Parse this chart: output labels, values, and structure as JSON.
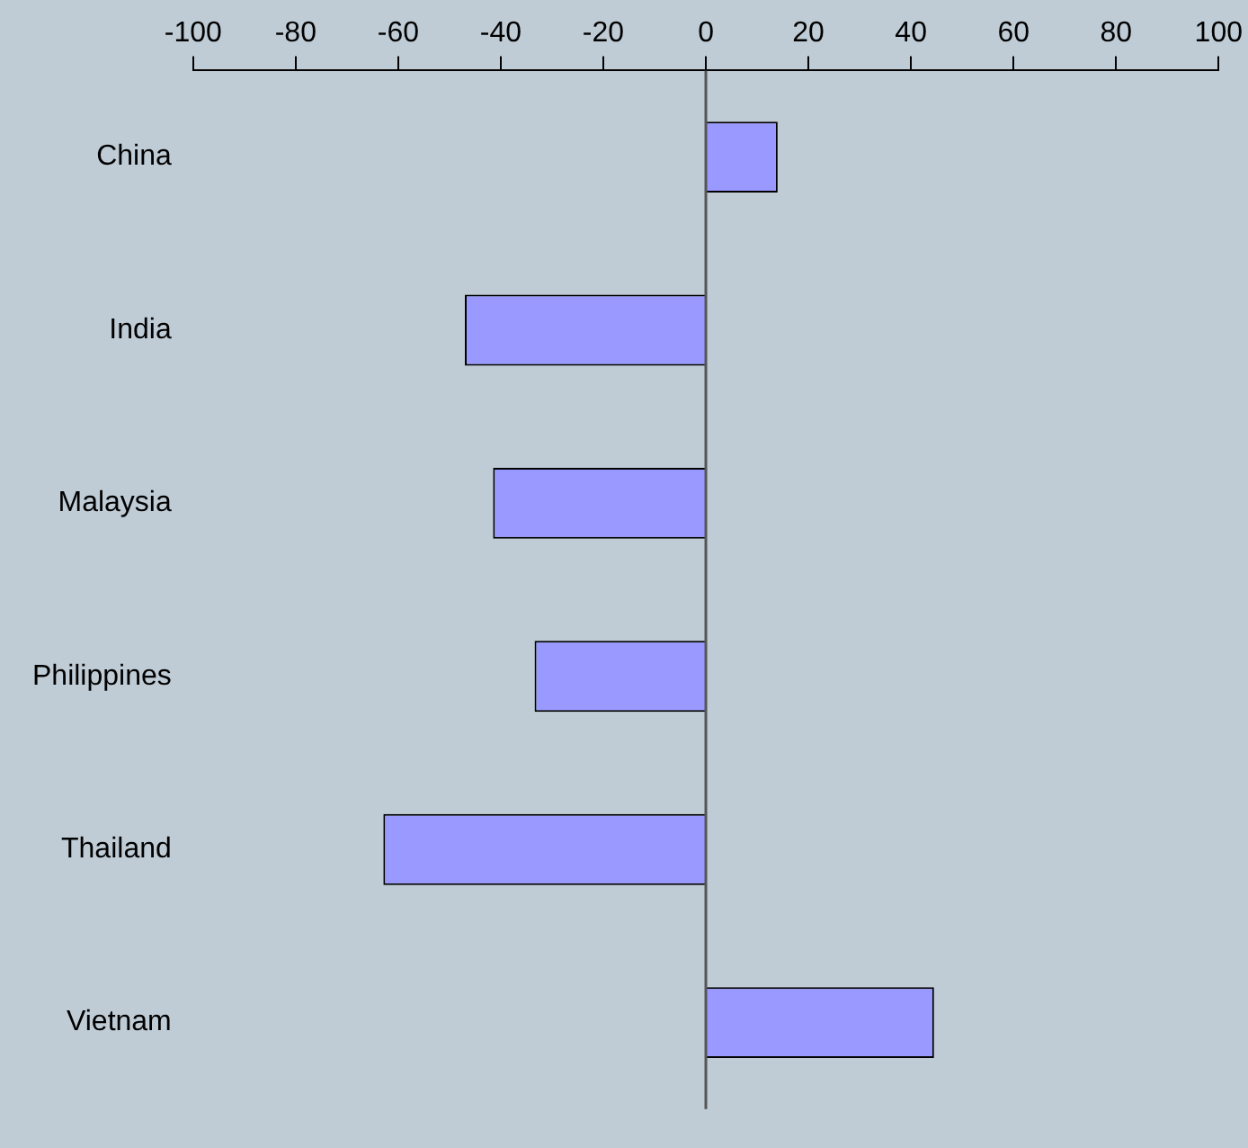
{
  "chart_data": {
    "type": "bar",
    "orientation": "horizontal",
    "categories": [
      "China",
      "India",
      "Malaysia",
      "Philippines",
      "Thailand",
      "Vietnam"
    ],
    "values": [
      14,
      -47,
      -41.5,
      -33.4,
      -62.9,
      44.5
    ],
    "color": "#9999ff",
    "xlim": [
      -100,
      100
    ],
    "xticks": [
      -100,
      -80,
      -60,
      -40,
      -20,
      0,
      20,
      40,
      60,
      80,
      100
    ],
    "grid": false,
    "ref_lines": [
      {
        "axis": "x",
        "value": 0,
        "color": "#555555"
      }
    ],
    "legend": false
  }
}
